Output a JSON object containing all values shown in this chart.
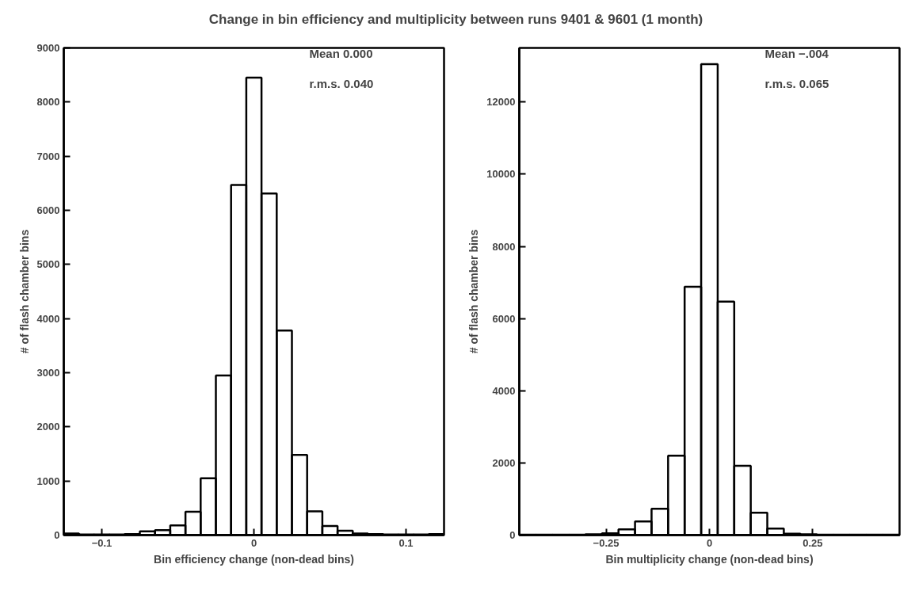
{
  "chart_data": [
    {
      "type": "histogram",
      "title": "Change in bin efficiency and multiplicity between runs 9401 & 9601 (1 month)",
      "xlabel": "Bin efficiency change (non-dead bins)",
      "ylabel": "# of flash chamber bins",
      "color": "#000000",
      "bins": [
        -0.125,
        -0.115,
        -0.105,
        -0.095,
        -0.085,
        -0.075,
        -0.065,
        -0.055,
        -0.045,
        -0.035,
        -0.025,
        -0.015,
        -0.005,
        0.005,
        0.015,
        0.025,
        0.035,
        0.045,
        0.055,
        0.065,
        0.075,
        0.085,
        0.095,
        0.105,
        0.115,
        0.125
      ],
      "values": [
        30,
        10,
        10,
        10,
        20,
        70,
        90,
        180,
        430,
        1050,
        2950,
        6470,
        8450,
        6310,
        3780,
        1480,
        440,
        170,
        80,
        30,
        20,
        10,
        10,
        10,
        20
      ],
      "xlim": [
        -0.125,
        0.125
      ],
      "xticks": [
        {
          "value": -0.1,
          "label": "−0.1"
        },
        0,
        0.1
      ],
      "ylim": [
        0,
        9000
      ],
      "yticks": [
        0,
        1000,
        2000,
        3000,
        4000,
        5000,
        6000,
        7000,
        8000,
        9000
      ],
      "grid": false,
      "annotations": [
        "Mean   0.000",
        "r.m.s.   0.040"
      ]
    },
    {
      "type": "histogram",
      "xlabel": "Bin multiplicity change (non-dead bins)",
      "ylabel": "# of flash chamber bins",
      "color": "#000000",
      "bins": [
        -0.46,
        -0.42,
        -0.38,
        -0.34,
        -0.3,
        -0.26,
        -0.22,
        -0.18,
        -0.14,
        -0.1,
        -0.06,
        -0.02,
        0.02,
        0.06,
        0.1,
        0.14,
        0.18,
        0.22,
        0.26,
        0.3,
        0.34,
        0.38,
        0.42,
        0.46
      ],
      "values": [
        10,
        10,
        10,
        10,
        20,
        50,
        160,
        380,
        730,
        2200,
        6880,
        13050,
        6470,
        1920,
        620,
        180,
        40,
        20,
        10,
        10,
        10,
        10,
        10
      ],
      "xlim": [
        -0.46,
        0.46
      ],
      "xticks": [
        {
          "value": -0.25,
          "label": "−0.25"
        },
        0,
        0.25
      ],
      "ylim": [
        0,
        13500
      ],
      "yticks": [
        0,
        2000,
        4000,
        6000,
        8000,
        10000,
        12000
      ],
      "grid": false,
      "annotations": [
        "Mean   −.004",
        "r.m.s.   0.065"
      ]
    }
  ]
}
